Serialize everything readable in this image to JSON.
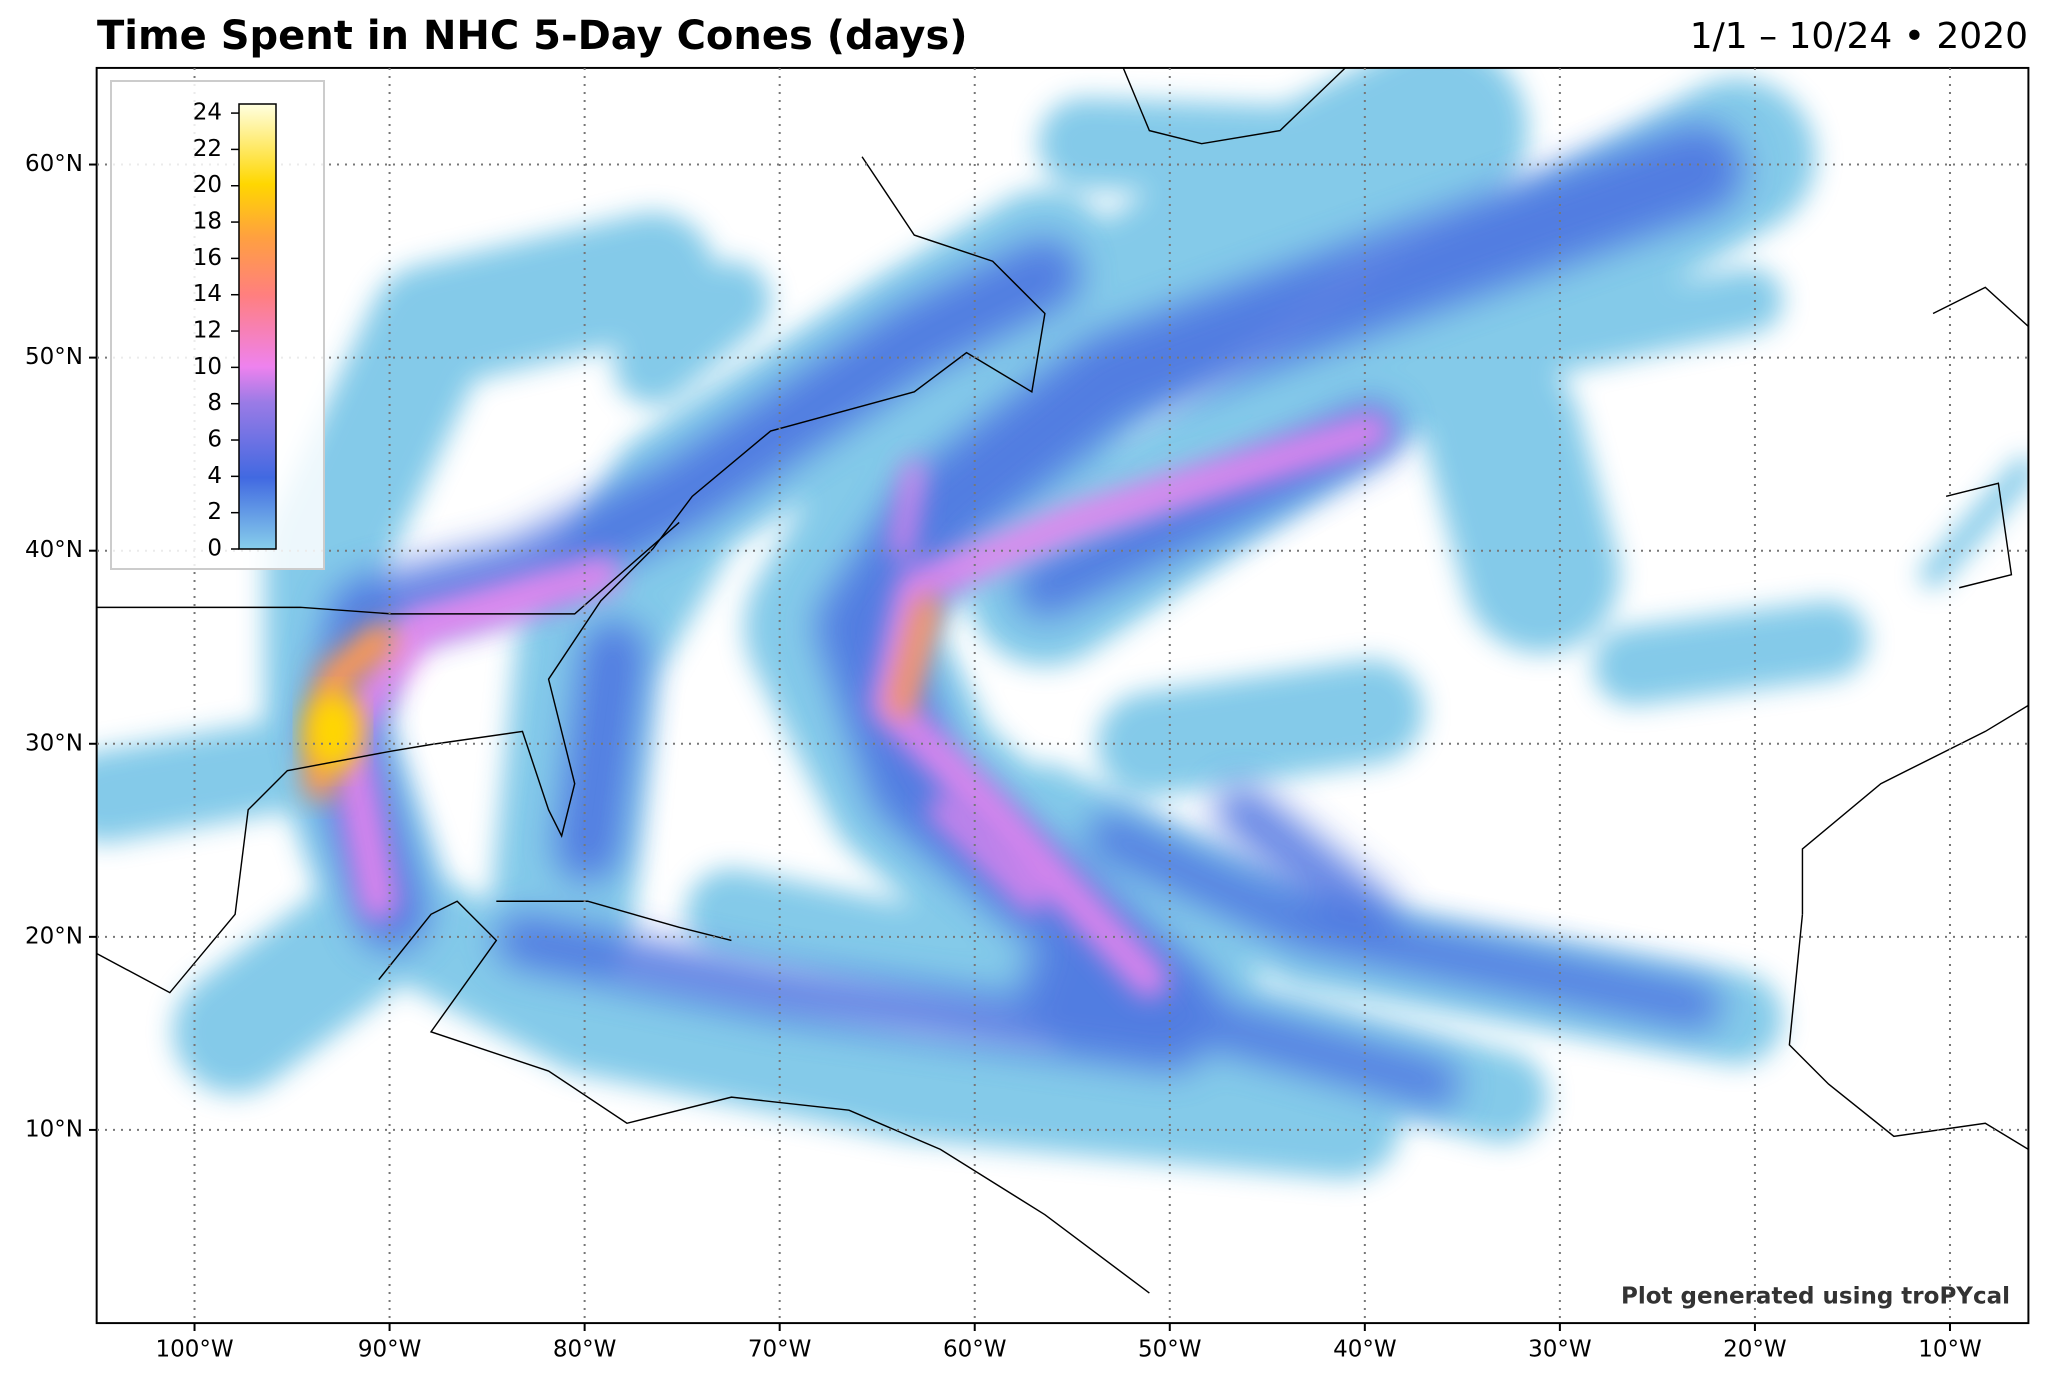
{
  "title": "Time Spent in NHC 5-Day Cones (days)",
  "date_range": "1/1 – 10/24 • 2020",
  "credit": "Plot generated using troPYcal",
  "map": {
    "xlim": [
      -105,
      -6
    ],
    "ylim": [
      0,
      65
    ],
    "xticks": [
      {
        "value": -100,
        "label": "100°W"
      },
      {
        "value": -90,
        "label": "90°W"
      },
      {
        "value": -80,
        "label": "80°W"
      },
      {
        "value": -70,
        "label": "70°W"
      },
      {
        "value": -60,
        "label": "60°W"
      },
      {
        "value": -50,
        "label": "50°W"
      },
      {
        "value": -40,
        "label": "40°W"
      },
      {
        "value": -30,
        "label": "30°W"
      },
      {
        "value": -20,
        "label": "20°W"
      },
      {
        "value": -10,
        "label": "10°W"
      }
    ],
    "yticks": [
      {
        "value": 10,
        "label": "10°N"
      },
      {
        "value": 20,
        "label": "20°N"
      },
      {
        "value": 30,
        "label": "30°N"
      },
      {
        "value": 40,
        "label": "40°N"
      },
      {
        "value": 50,
        "label": "50°N"
      },
      {
        "value": 60,
        "label": "60°N"
      }
    ],
    "grid": true
  },
  "colorbar": {
    "lim": [
      0,
      24.5
    ],
    "ticks": [
      0,
      2,
      4,
      6,
      8,
      10,
      12,
      14,
      16,
      18,
      20,
      22,
      24
    ]
  }
}
